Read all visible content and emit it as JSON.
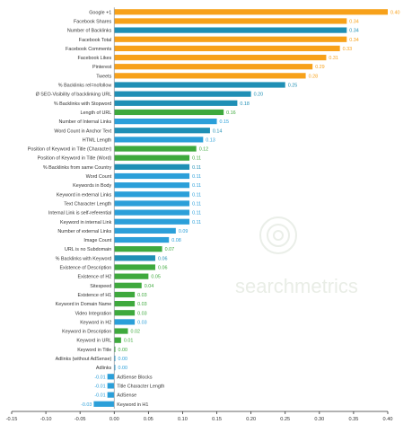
{
  "chart_data": {
    "type": "bar",
    "orientation": "horizontal",
    "title": "",
    "xlabel": "",
    "ylabel": "",
    "xlim": [
      -0.15,
      0.4
    ],
    "x_ticks": [
      -0.15,
      -0.1,
      -0.05,
      0.0,
      0.05,
      0.1,
      0.15,
      0.2,
      0.25,
      0.3,
      0.35,
      0.4
    ],
    "x_tick_labels": [
      "-0.15",
      "-0.10",
      "-0.05",
      "0.00",
      "0.05",
      "0.10",
      "0.15",
      "0.20",
      "0.25",
      "0.30",
      "0.35",
      "0.40"
    ],
    "grid": false,
    "legend": "none",
    "watermark": "searchmetrics",
    "category_colors": {
      "social": "#f7a11a",
      "backlinks": "#1f8fb5",
      "technical": "#2b9fd9",
      "onpage": "#3ea93d"
    },
    "bars": [
      {
        "label": "Google +1",
        "value": 0.4,
        "value_label": "0.40",
        "category": "social"
      },
      {
        "label": "Facebook Shares",
        "value": 0.34,
        "value_label": "0.34",
        "category": "social"
      },
      {
        "label": "Number of Backlinks",
        "value": 0.34,
        "value_label": "0.34",
        "category": "backlinks"
      },
      {
        "label": "Facebook Total",
        "value": 0.34,
        "value_label": "0.34",
        "category": "social"
      },
      {
        "label": "Facebook Comments",
        "value": 0.33,
        "value_label": "0.33",
        "category": "social"
      },
      {
        "label": "Facebook Likes",
        "value": 0.31,
        "value_label": "0.31",
        "category": "social"
      },
      {
        "label": "Pinterest",
        "value": 0.29,
        "value_label": "0.29",
        "category": "social"
      },
      {
        "label": "Tweets",
        "value": 0.28,
        "value_label": "0.28",
        "category": "social"
      },
      {
        "label": "% Backlinks rel=nofollow",
        "value": 0.25,
        "value_label": "0.25",
        "category": "backlinks"
      },
      {
        "label": "Ø SEO-Visibility of backlinking URL",
        "value": 0.2,
        "value_label": "0.20",
        "category": "backlinks"
      },
      {
        "label": "% Backlinks with Stopword",
        "value": 0.18,
        "value_label": "0.18",
        "category": "backlinks"
      },
      {
        "label": "Length of URL",
        "value": 0.16,
        "value_label": "0.16",
        "category": "onpage"
      },
      {
        "label": "Number of Internal Links",
        "value": 0.15,
        "value_label": "0.15",
        "category": "technical"
      },
      {
        "label": "Word Count in Anchor Text",
        "value": 0.14,
        "value_label": "0.14",
        "category": "backlinks"
      },
      {
        "label": "HTML Length",
        "value": 0.13,
        "value_label": "0.13",
        "category": "technical"
      },
      {
        "label": "Position of Keyword in Title (Character)",
        "value": 0.12,
        "value_label": "0.12",
        "category": "onpage"
      },
      {
        "label": "Position of Keyword in Title (Word)",
        "value": 0.11,
        "value_label": "0.11",
        "category": "onpage"
      },
      {
        "label": "% Backlinks from same Country",
        "value": 0.11,
        "value_label": "0.11",
        "category": "backlinks"
      },
      {
        "label": "Word Count",
        "value": 0.11,
        "value_label": "0.11",
        "category": "technical"
      },
      {
        "label": "Keywords in Body",
        "value": 0.11,
        "value_label": "0.11",
        "category": "technical"
      },
      {
        "label": "Keyword in external Links",
        "value": 0.11,
        "value_label": "0.11",
        "category": "technical"
      },
      {
        "label": "Text Character Length",
        "value": 0.11,
        "value_label": "0.11",
        "category": "technical"
      },
      {
        "label": "Internal Link is self-referential",
        "value": 0.11,
        "value_label": "0.11",
        "category": "technical"
      },
      {
        "label": "Keyword in internal Link",
        "value": 0.11,
        "value_label": "0.11",
        "category": "technical"
      },
      {
        "label": "Number of external Links",
        "value": 0.09,
        "value_label": "0.09",
        "category": "technical"
      },
      {
        "label": "Image Count",
        "value": 0.08,
        "value_label": "0.08",
        "category": "technical"
      },
      {
        "label": "URL is no Subdomain",
        "value": 0.07,
        "value_label": "0.07",
        "category": "onpage"
      },
      {
        "label": "% Backlinks with Keyword",
        "value": 0.06,
        "value_label": "0.06",
        "category": "backlinks"
      },
      {
        "label": "Existence of Description",
        "value": 0.06,
        "value_label": "0.06",
        "category": "onpage"
      },
      {
        "label": "Existence of H2",
        "value": 0.05,
        "value_label": "0.05",
        "category": "onpage"
      },
      {
        "label": "Sitespeed",
        "value": 0.04,
        "value_label": "0.04",
        "category": "onpage"
      },
      {
        "label": "Existence of H1",
        "value": 0.03,
        "value_label": "0.03",
        "category": "onpage"
      },
      {
        "label": "Keyword in Domain Name",
        "value": 0.03,
        "value_label": "0.03",
        "category": "onpage"
      },
      {
        "label": "Video Integration",
        "value": 0.03,
        "value_label": "0.03",
        "category": "onpage"
      },
      {
        "label": "Keyword in H2",
        "value": 0.03,
        "value_label": "0.03",
        "category": "technical"
      },
      {
        "label": "Keyword in Description",
        "value": 0.02,
        "value_label": "0.02",
        "category": "onpage"
      },
      {
        "label": "Keyword in URL",
        "value": 0.01,
        "value_label": "0.01",
        "category": "onpage"
      },
      {
        "label": "Keyword in Title",
        "value": 0.0,
        "value_label": "0.00",
        "category": "onpage"
      },
      {
        "label": "Adlinks (without AdSense)",
        "value": 0.0,
        "value_label": "0.00",
        "category": "technical"
      },
      {
        "label": "Adlinks",
        "value": 0.0,
        "value_label": "0.00",
        "category": "technical"
      },
      {
        "label": "AdSense Blocks",
        "value": -0.01,
        "value_label": "-0.01",
        "category": "technical"
      },
      {
        "label": "Title Character Length",
        "value": -0.01,
        "value_label": "-0.01",
        "category": "technical"
      },
      {
        "label": "AdSense",
        "value": -0.01,
        "value_label": "-0.01",
        "category": "technical"
      },
      {
        "label": "Keyword in H1",
        "value": -0.03,
        "value_label": "-0.03",
        "category": "technical"
      }
    ]
  }
}
